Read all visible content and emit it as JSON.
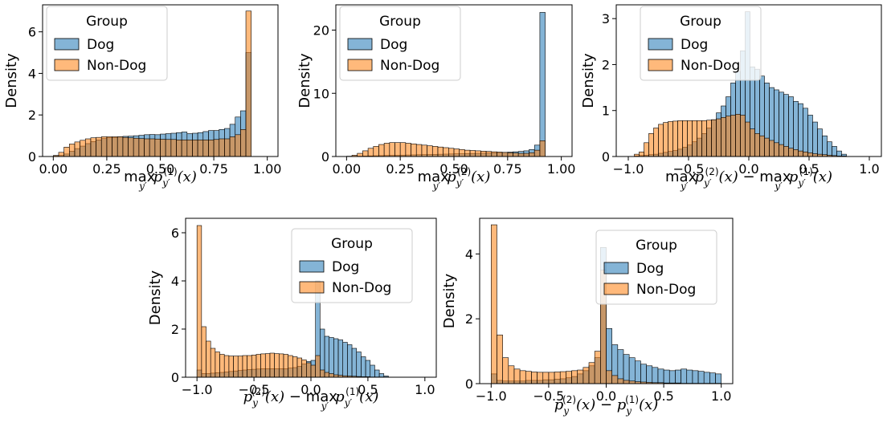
{
  "chart_data": [
    {
      "type": "histogram",
      "xlabel": "max_{y'} p_{y'}^{(1)}(x)",
      "xlabel_parts": {
        "op1": "max",
        "sub1": "y′",
        "p1": "p",
        "psub1": "y′",
        "psup1": "(1)",
        "arg1": "(x)"
      },
      "ylabel": "Density",
      "xlim": [
        -0.05,
        1.05
      ],
      "ylim": [
        0,
        7.3
      ],
      "xticks": [
        0.0,
        0.25,
        0.5,
        0.75,
        1.0
      ],
      "xtick_labels": [
        "0.00",
        "0.25",
        "0.50",
        "0.75",
        "1.00"
      ],
      "yticks": [
        0,
        2,
        4,
        6
      ],
      "ytick_labels": [
        "0",
        "2",
        "4",
        "6"
      ],
      "bin_start": 0.0,
      "bin_width": 0.025,
      "legend": {
        "title": "Group",
        "position": "upper-left"
      },
      "series": [
        {
          "name": "Dog",
          "color": "#1f77b4",
          "values": [
            0.02,
            0.05,
            0.12,
            0.25,
            0.38,
            0.5,
            0.62,
            0.72,
            0.8,
            0.86,
            0.9,
            0.92,
            0.95,
            0.97,
            0.98,
            1.0,
            1.02,
            1.05,
            1.06,
            1.05,
            1.08,
            1.1,
            1.12,
            1.15,
            1.18,
            1.1,
            1.12,
            1.15,
            1.2,
            1.25,
            1.25,
            1.3,
            1.35,
            1.55,
            1.9,
            2.2,
            5.0
          ]
        },
        {
          "name": "Non-Dog",
          "color": "#ff7f0e",
          "values": [
            0.05,
            0.2,
            0.45,
            0.6,
            0.7,
            0.78,
            0.85,
            0.9,
            0.92,
            0.95,
            0.95,
            0.95,
            0.95,
            0.92,
            0.9,
            0.88,
            0.86,
            0.85,
            0.85,
            0.84,
            0.83,
            0.82,
            0.82,
            0.8,
            0.8,
            0.8,
            0.8,
            0.8,
            0.8,
            0.8,
            0.82,
            0.85,
            0.85,
            0.95,
            1.05,
            1.3,
            7.0
          ]
        }
      ]
    },
    {
      "type": "histogram",
      "xlabel": "max_{y'} p_{y'}^{(2)}(x)",
      "xlabel_parts": {
        "op1": "max",
        "sub1": "y′",
        "p1": "p",
        "psub1": "y′",
        "psup1": "(2)",
        "arg1": "(x)"
      },
      "ylabel": "Density",
      "xlim": [
        -0.05,
        1.05
      ],
      "ylim": [
        0,
        24
      ],
      "xticks": [
        0.0,
        0.25,
        0.5,
        0.75,
        1.0
      ],
      "xtick_labels": [
        "0.00",
        "0.25",
        "0.50",
        "0.75",
        "1.00"
      ],
      "yticks": [
        0,
        10,
        20
      ],
      "ytick_labels": [
        "0",
        "10",
        "20"
      ],
      "bin_start": 0.0,
      "bin_width": 0.025,
      "legend": {
        "title": "Group",
        "position": "upper-left"
      },
      "series": [
        {
          "name": "Dog",
          "color": "#1f77b4",
          "values": [
            0.02,
            0.04,
            0.06,
            0.08,
            0.1,
            0.12,
            0.14,
            0.16,
            0.18,
            0.2,
            0.22,
            0.24,
            0.26,
            0.28,
            0.3,
            0.32,
            0.34,
            0.36,
            0.38,
            0.4,
            0.42,
            0.44,
            0.46,
            0.48,
            0.5,
            0.52,
            0.55,
            0.58,
            0.62,
            0.66,
            0.7,
            0.75,
            0.8,
            0.9,
            1.1,
            1.8,
            22.8
          ]
        },
        {
          "name": "Non-Dog",
          "color": "#ff7f0e",
          "values": [
            0.05,
            0.2,
            0.5,
            0.9,
            1.3,
            1.6,
            1.9,
            2.1,
            2.2,
            2.2,
            2.2,
            2.1,
            2.0,
            1.9,
            1.8,
            1.7,
            1.6,
            1.5,
            1.4,
            1.3,
            1.2,
            1.1,
            1.0,
            0.95,
            0.9,
            0.85,
            0.8,
            0.75,
            0.7,
            0.65,
            0.6,
            0.55,
            0.5,
            0.5,
            0.6,
            1.0,
            2.5
          ]
        }
      ]
    },
    {
      "type": "histogram",
      "xlabel": "max_{y'} p_{y'}^{(2)}(x) − max_{y'} p_{y'}^{(1)}(x)",
      "xlabel_parts": {
        "op1": "max",
        "sub1": "y′",
        "p1": "p",
        "psub1": "y′",
        "psup1": "(2)",
        "arg1": "(x)",
        "minus": "−",
        "op2": "max",
        "sub2": "y′",
        "p2": "p",
        "psub2": "y′",
        "psup2": "(1)",
        "arg2": "(x)"
      },
      "ylabel": "Density",
      "xlim": [
        -1.1,
        1.1
      ],
      "ylim": [
        0,
        3.3
      ],
      "xticks": [
        -1.0,
        -0.5,
        0.0,
        0.5,
        1.0
      ],
      "xtick_labels": [
        "−1.0",
        "−0.5",
        "0.0",
        "0.5",
        "1.0"
      ],
      "yticks": [
        0,
        1,
        2,
        3
      ],
      "ytick_labels": [
        "0",
        "1",
        "2",
        "3"
      ],
      "bin_start": -0.95,
      "bin_width": 0.04,
      "legend": {
        "title": "Group",
        "position": "upper-left"
      },
      "series": [
        {
          "name": "Dog",
          "color": "#1f77b4",
          "values": [
            0.01,
            0.02,
            0.03,
            0.04,
            0.05,
            0.07,
            0.09,
            0.11,
            0.13,
            0.16,
            0.2,
            0.25,
            0.32,
            0.4,
            0.5,
            0.62,
            0.8,
            0.95,
            1.1,
            1.3,
            1.6,
            1.85,
            2.3,
            3.15,
            1.95,
            1.9,
            1.75,
            1.6,
            1.5,
            1.45,
            1.4,
            1.35,
            1.3,
            1.2,
            1.15,
            1.05,
            0.9,
            0.75,
            0.6,
            0.45,
            0.32,
            0.22,
            0.12,
            0.05
          ]
        },
        {
          "name": "Non-Dog",
          "color": "#ff7f0e",
          "values": [
            0.05,
            0.1,
            0.3,
            0.5,
            0.62,
            0.7,
            0.74,
            0.76,
            0.77,
            0.78,
            0.78,
            0.78,
            0.78,
            0.78,
            0.78,
            0.79,
            0.8,
            0.82,
            0.85,
            0.88,
            0.9,
            0.92,
            0.9,
            0.75,
            0.6,
            0.5,
            0.45,
            0.4,
            0.35,
            0.3,
            0.26,
            0.22,
            0.18,
            0.15,
            0.12,
            0.1,
            0.08,
            0.06,
            0.05,
            0.04,
            0.03,
            0.02,
            0.01,
            0.01
          ]
        }
      ]
    },
    {
      "type": "histogram",
      "xlabel": "p_y^{(2)}(x) − max_{y'} p_{y'}^{(1)}(x)",
      "xlabel_parts": {
        "p1": "p",
        "psub1": "y",
        "psup1": "(2)",
        "arg1": "(x)",
        "minus": "−",
        "op2": "max",
        "sub2": "y′",
        "p2": "p",
        "psub2": "y′",
        "psup2": "(1)",
        "arg2": "(x)"
      },
      "ylabel": "Density",
      "xlim": [
        -1.1,
        1.1
      ],
      "ylim": [
        0,
        6.6
      ],
      "xticks": [
        -1.0,
        -0.5,
        0.0,
        0.5,
        1.0
      ],
      "xtick_labels": [
        "−1.0",
        "−0.5",
        "0.0",
        "0.5",
        "1.0"
      ],
      "yticks": [
        0,
        2,
        4,
        6
      ],
      "ytick_labels": [
        "0",
        "2",
        "4",
        "6"
      ],
      "bin_start": -1.0,
      "bin_width": 0.04,
      "legend": {
        "title": "Group",
        "position": "upper-right"
      },
      "series": [
        {
          "name": "Dog",
          "color": "#1f77b4",
          "values": [
            0.3,
            0.15,
            0.15,
            0.17,
            0.19,
            0.2,
            0.22,
            0.24,
            0.26,
            0.28,
            0.3,
            0.32,
            0.33,
            0.34,
            0.35,
            0.35,
            0.35,
            0.35,
            0.35,
            0.35,
            0.38,
            0.4,
            0.45,
            0.55,
            0.65,
            0.7,
            4.0,
            2.0,
            1.7,
            1.65,
            1.6,
            1.55,
            1.45,
            1.35,
            1.2,
            1.05,
            0.85,
            0.7,
            0.5,
            0.3,
            0.15,
            0.05
          ]
        },
        {
          "name": "Non-Dog",
          "color": "#ff7f0e",
          "values": [
            6.3,
            2.1,
            1.5,
            1.2,
            1.05,
            0.95,
            0.9,
            0.88,
            0.88,
            0.88,
            0.9,
            0.9,
            0.92,
            0.95,
            0.97,
            0.98,
            1.0,
            0.98,
            0.97,
            0.95,
            0.9,
            0.85,
            0.8,
            0.72,
            0.6,
            0.5,
            0.9,
            0.3,
            0.2,
            0.15,
            0.1,
            0.08,
            0.06,
            0.05,
            0.04,
            0.03,
            0.02,
            0.02,
            0.01,
            0.01,
            0.01,
            0.01
          ]
        }
      ]
    },
    {
      "type": "histogram",
      "xlabel": "p_y^{(2)}(x) − p_y^{(1)}(x)",
      "xlabel_parts": {
        "p1": "p",
        "psub1": "y",
        "psup1": "(2)",
        "arg1": "(x)",
        "minus": "−",
        "p2": "p",
        "psub2": "y",
        "psup2": "(1)",
        "arg2": "(x)"
      },
      "ylabel": "Density",
      "xlim": [
        -1.1,
        1.1
      ],
      "ylim": [
        0,
        5.1
      ],
      "xticks": [
        -1.0,
        -0.5,
        0.0,
        0.5,
        1.0
      ],
      "xtick_labels": [
        "−1.0",
        "−0.5",
        "0.0",
        "0.5",
        "1.0"
      ],
      "yticks": [
        0,
        2,
        4
      ],
      "ytick_labels": [
        "0",
        "2",
        "4"
      ],
      "bin_start": -1.0,
      "bin_width": 0.05,
      "legend": {
        "title": "Group",
        "position": "upper-right"
      },
      "series": [
        {
          "name": "Dog",
          "color": "#1f77b4",
          "values": [
            0.3,
            0.1,
            0.08,
            0.08,
            0.08,
            0.08,
            0.1,
            0.1,
            0.1,
            0.12,
            0.12,
            0.14,
            0.15,
            0.18,
            0.22,
            0.3,
            0.4,
            0.55,
            0.8,
            4.2,
            1.7,
            1.2,
            1.05,
            0.9,
            0.8,
            0.7,
            0.6,
            0.55,
            0.5,
            0.45,
            0.42,
            0.4,
            0.42,
            0.45,
            0.42,
            0.4,
            0.38,
            0.35,
            0.33,
            0.3
          ]
        },
        {
          "name": "Non-Dog",
          "color": "#ff7f0e",
          "values": [
            4.9,
            1.5,
            0.8,
            0.55,
            0.45,
            0.4,
            0.38,
            0.36,
            0.35,
            0.35,
            0.35,
            0.36,
            0.37,
            0.38,
            0.4,
            0.42,
            0.5,
            0.65,
            1.0,
            3.5,
            0.4,
            0.25,
            0.15,
            0.1,
            0.08,
            0.06,
            0.05,
            0.04,
            0.03,
            0.03,
            0.02,
            0.02,
            0.02,
            0.01,
            0.01,
            0.01,
            0.01,
            0.01,
            0.01,
            0.01
          ]
        }
      ]
    }
  ]
}
